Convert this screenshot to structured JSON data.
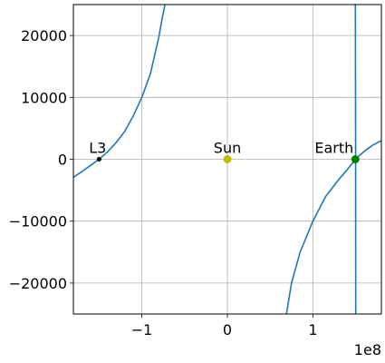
{
  "chart_data": {
    "type": "line",
    "title": "",
    "xlabel": "",
    "ylabel": "",
    "x_offset_label": "1e8",
    "xlim": [
      -180000000,
      180000000
    ],
    "ylim": [
      -25000,
      25000
    ],
    "grid": true,
    "x_ticks": [
      {
        "value": -100000000,
        "label": "−1"
      },
      {
        "value": 0,
        "label": "0"
      },
      {
        "value": 100000000,
        "label": "1"
      }
    ],
    "y_ticks": [
      {
        "value": 20000,
        "label": "20000"
      },
      {
        "value": 10000,
        "label": "10000"
      },
      {
        "value": 0,
        "label": "0"
      },
      {
        "value": -10000,
        "label": "−10000"
      },
      {
        "value": -20000,
        "label": "−20000"
      }
    ],
    "series": [
      {
        "color": "#1f77b4",
        "points": [
          [
            -180000000,
            -2900
          ],
          [
            -170000000,
            -2000
          ],
          [
            -160000000,
            -1000
          ],
          [
            -150000000,
            0
          ],
          [
            -140000000,
            1200
          ],
          [
            -130000000,
            2700
          ],
          [
            -120000000,
            4500
          ],
          [
            -110000000,
            7000
          ],
          [
            -100000000,
            10000
          ],
          [
            -90000000,
            13800
          ],
          [
            -85000000,
            16800
          ],
          [
            -80000000,
            19800
          ],
          [
            -77000000,
            22200
          ],
          [
            -73000000,
            25000
          ]
        ]
      },
      {
        "color": "#1f77b4",
        "points": [
          [
            69000000,
            -25000
          ],
          [
            75000000,
            -20000
          ],
          [
            85000000,
            -15000
          ],
          [
            100000000,
            -10000
          ],
          [
            115000000,
            -6000
          ],
          [
            130000000,
            -3300
          ],
          [
            140000000,
            -1700
          ],
          [
            147000000,
            -500
          ],
          [
            149000000,
            -80
          ],
          [
            150000000,
            0
          ]
        ]
      },
      {
        "color": "#1f77b4",
        "points": [
          [
            149600000,
            25000
          ],
          [
            149900000,
            0
          ],
          [
            150000000,
            -25000
          ]
        ]
      },
      {
        "color": "#1f77b4",
        "points": [
          [
            150000000,
            0
          ],
          [
            155000000,
            700
          ],
          [
            162000000,
            1500
          ],
          [
            170000000,
            2300
          ],
          [
            180000000,
            3000
          ]
        ]
      }
    ],
    "points": [
      {
        "label": "L3",
        "x": -150000000,
        "y": 0,
        "color": "#000000"
      },
      {
        "label": "Sun",
        "x": 0,
        "y": 0,
        "color": "#bfbf00"
      },
      {
        "label": "Earth",
        "x": 149600000,
        "y": 0,
        "color": "#008000"
      }
    ]
  }
}
